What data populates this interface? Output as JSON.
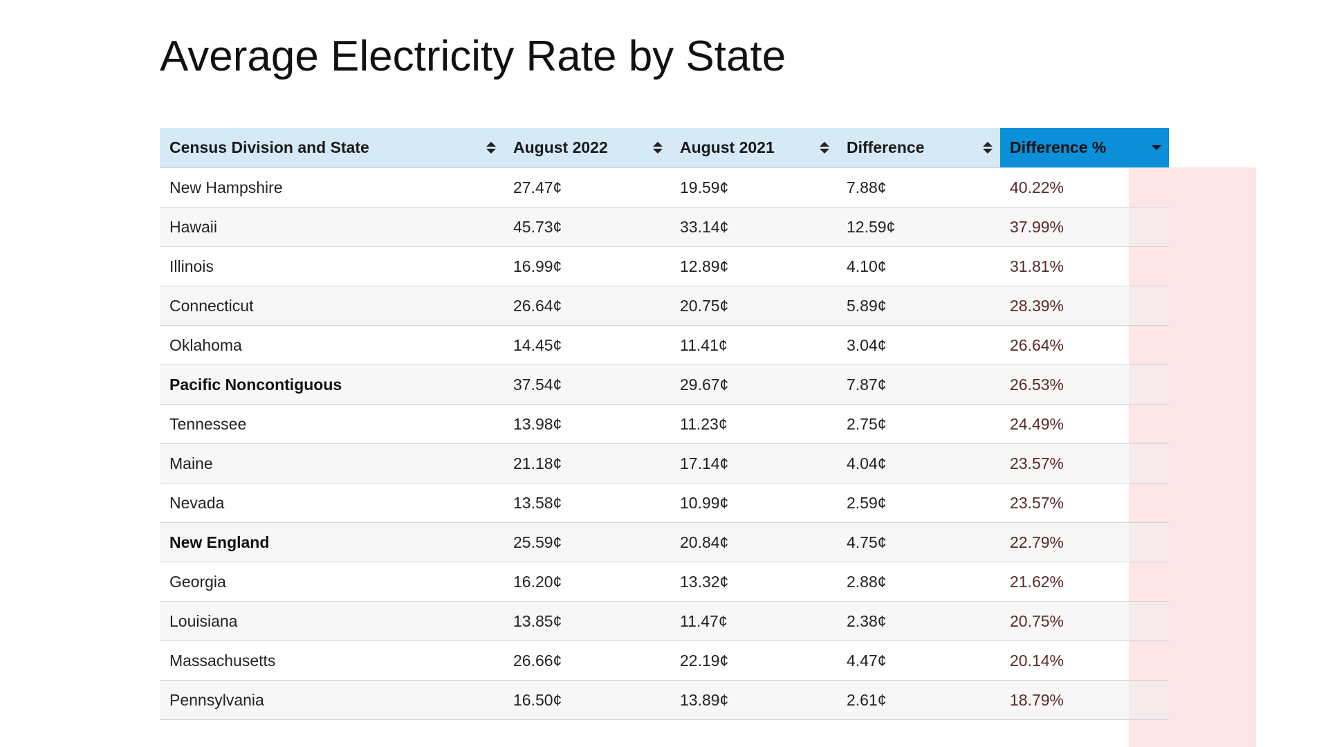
{
  "title": "Average Electricity Rate by State",
  "table": {
    "columns": [
      {
        "label": "Census Division and State",
        "sort": "both"
      },
      {
        "label": "August 2022",
        "sort": "both"
      },
      {
        "label": "August 2021",
        "sort": "both"
      },
      {
        "label": "Difference",
        "sort": "both"
      },
      {
        "label": "Difference %",
        "sort": "descending",
        "active": true
      }
    ],
    "active_header_color": "#0a8fd8",
    "header_color": "#d5e9f6",
    "highlight_color": "#fde0e2",
    "rows": [
      {
        "name": "New Hampshire",
        "bold": false,
        "aug2022": "27.47¢",
        "aug2021": "19.59¢",
        "diff": "7.88¢",
        "diff_pct": "40.22%"
      },
      {
        "name": "Hawaii",
        "bold": false,
        "aug2022": "45.73¢",
        "aug2021": "33.14¢",
        "diff": "12.59¢",
        "diff_pct": "37.99%"
      },
      {
        "name": "Illinois",
        "bold": false,
        "aug2022": "16.99¢",
        "aug2021": "12.89¢",
        "diff": "4.10¢",
        "diff_pct": "31.81%"
      },
      {
        "name": "Connecticut",
        "bold": false,
        "aug2022": "26.64¢",
        "aug2021": "20.75¢",
        "diff": "5.89¢",
        "diff_pct": "28.39%"
      },
      {
        "name": "Oklahoma",
        "bold": false,
        "aug2022": "14.45¢",
        "aug2021": "11.41¢",
        "diff": "3.04¢",
        "diff_pct": "26.64%"
      },
      {
        "name": "Pacific Noncontiguous",
        "bold": true,
        "aug2022": "37.54¢",
        "aug2021": "29.67¢",
        "diff": "7.87¢",
        "diff_pct": "26.53%"
      },
      {
        "name": "Tennessee",
        "bold": false,
        "aug2022": "13.98¢",
        "aug2021": "11.23¢",
        "diff": "2.75¢",
        "diff_pct": "24.49%"
      },
      {
        "name": "Maine",
        "bold": false,
        "aug2022": "21.18¢",
        "aug2021": "17.14¢",
        "diff": "4.04¢",
        "diff_pct": "23.57%"
      },
      {
        "name": "Nevada",
        "bold": false,
        "aug2022": "13.58¢",
        "aug2021": "10.99¢",
        "diff": "2.59¢",
        "diff_pct": "23.57%"
      },
      {
        "name": "New England",
        "bold": true,
        "aug2022": "25.59¢",
        "aug2021": "20.84¢",
        "diff": "4.75¢",
        "diff_pct": "22.79%"
      },
      {
        "name": "Georgia",
        "bold": false,
        "aug2022": "16.20¢",
        "aug2021": "13.32¢",
        "diff": "2.88¢",
        "diff_pct": "21.62%"
      },
      {
        "name": "Louisiana",
        "bold": false,
        "aug2022": "13.85¢",
        "aug2021": "11.47¢",
        "diff": "2.38¢",
        "diff_pct": "20.75%"
      },
      {
        "name": "Massachusetts",
        "bold": false,
        "aug2022": "26.66¢",
        "aug2021": "22.19¢",
        "diff": "4.47¢",
        "diff_pct": "20.14%"
      },
      {
        "name": "Pennsylvania",
        "bold": false,
        "aug2022": "16.50¢",
        "aug2021": "13.89¢",
        "diff": "2.61¢",
        "diff_pct": "18.79%"
      }
    ]
  }
}
